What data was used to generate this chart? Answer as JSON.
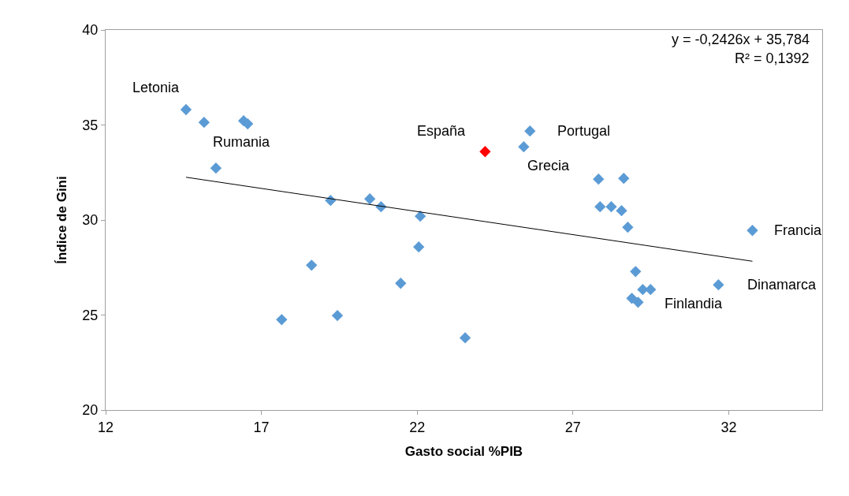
{
  "chart_data": {
    "type": "scatter",
    "xlabel": "Gasto social %PIB",
    "ylabel": "Índice de Gini",
    "xlim": [
      12,
      35
    ],
    "xticks": [
      12,
      17,
      22,
      27,
      32
    ],
    "ylim": [
      20,
      40
    ],
    "yticks": [
      20,
      25,
      30,
      35,
      40
    ],
    "grid": false,
    "marker": "diamond",
    "series": [
      {
        "color": "#5b9bd5",
        "x": [
          14.58,
          15.16,
          16.43,
          16.56,
          15.54,
          19.22,
          20.48,
          20.84,
          22.1,
          22.05,
          18.61,
          21.47,
          17.65,
          19.44,
          23.54,
          24.18,
          25.62,
          25.42,
          27.82,
          28.63,
          27.87,
          28.23,
          28.56,
          28.76,
          29.01,
          29.24,
          29.49,
          28.89,
          29.09,
          31.67,
          32.76
        ],
        "values": [
          35.81,
          35.14,
          35.22,
          35.06,
          32.73,
          31.03,
          31.11,
          30.7,
          30.2,
          28.58,
          27.62,
          26.67,
          24.76,
          24.97,
          23.8,
          33.6,
          34.68,
          33.85,
          32.15,
          32.19,
          30.7,
          30.7,
          30.49,
          29.62,
          27.29,
          26.34,
          26.34,
          25.88,
          25.67,
          26.59,
          29.45
        ],
        "colors": [
          "#5b9bd5",
          "#5b9bd5",
          "#5b9bd5",
          "#5b9bd5",
          "#5b9bd5",
          "#5b9bd5",
          "#5b9bd5",
          "#5b9bd5",
          "#5b9bd5",
          "#5b9bd5",
          "#5b9bd5",
          "#5b9bd5",
          "#5b9bd5",
          "#5b9bd5",
          "#5b9bd5",
          "#ff0000",
          "#5b9bd5",
          "#5b9bd5",
          "#5b9bd5",
          "#5b9bd5",
          "#5b9bd5",
          "#5b9bd5",
          "#5b9bd5",
          "#5b9bd5",
          "#5b9bd5",
          "#5b9bd5",
          "#5b9bd5",
          "#5b9bd5",
          "#5b9bd5",
          "#5b9bd5",
          "#5b9bd5"
        ]
      },
      {
        "type": "line",
        "marker": "none",
        "color": "#000000",
        "x": [
          14.58,
          32.76
        ],
        "values": [
          32.25,
          27.83
        ]
      }
    ],
    "annotations": [
      {
        "text": "Letonia",
        "x": 14.58,
        "y": 35.81
      },
      {
        "text": "Rumania",
        "x": 15.54,
        "y": 32.73
      },
      {
        "text": "España",
        "x": 24.18,
        "y": 33.6
      },
      {
        "text": "Portugal",
        "x": 25.62,
        "y": 34.68
      },
      {
        "text": "Grecia",
        "x": 25.42,
        "y": 33.85
      },
      {
        "text": "Francia",
        "x": 32.76,
        "y": 29.45
      },
      {
        "text": "Dinamarca",
        "x": 31.67,
        "y": 26.59
      },
      {
        "text": "Finlandia",
        "x": 29.09,
        "y": 25.67
      },
      "y = -0,2426x + 35,784",
      "R² = 0,1392"
    ]
  }
}
